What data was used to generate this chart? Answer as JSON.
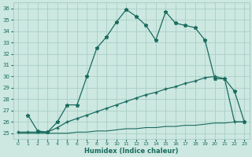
{
  "xlabel": "Humidex (Indice chaleur)",
  "bg_color": "#cce8e0",
  "grid_color": "#aacec8",
  "line_color": "#1a6b60",
  "xlim": [
    -0.5,
    23.5
  ],
  "ylim": [
    24.5,
    36.5
  ],
  "xticks": [
    0,
    1,
    2,
    3,
    4,
    5,
    6,
    7,
    8,
    9,
    10,
    11,
    12,
    13,
    14,
    15,
    16,
    17,
    18,
    19,
    20,
    21,
    22,
    23
  ],
  "yticks": [
    25,
    26,
    27,
    28,
    29,
    30,
    31,
    32,
    33,
    34,
    35,
    36
  ],
  "line1_x": [
    1,
    2,
    3,
    4,
    5,
    6,
    7,
    8,
    9,
    10,
    11,
    12,
    13,
    14,
    15,
    16,
    17,
    18,
    19,
    20,
    21,
    22,
    23
  ],
  "line1_y": [
    26.6,
    25.2,
    25.1,
    26.0,
    27.5,
    27.5,
    30.0,
    32.5,
    33.5,
    34.8,
    35.9,
    35.3,
    34.5,
    33.2,
    35.7,
    34.7,
    34.5,
    34.3,
    33.2,
    29.8,
    29.8,
    28.7,
    26.0
  ],
  "line2_x": [
    0,
    1,
    2,
    3,
    4,
    5,
    6,
    7,
    8,
    9,
    10,
    11,
    12,
    13,
    14,
    15,
    16,
    17,
    18,
    19,
    20,
    21,
    22,
    23
  ],
  "line2_y": [
    25.1,
    25.1,
    25.1,
    25.1,
    25.5,
    26.0,
    26.3,
    26.6,
    26.9,
    27.2,
    27.5,
    27.8,
    28.1,
    28.4,
    28.6,
    28.9,
    29.1,
    29.4,
    29.6,
    29.9,
    30.0,
    29.8,
    26.0,
    26.0
  ],
  "line3_x": [
    0,
    1,
    2,
    3,
    4,
    5,
    6,
    7,
    8,
    9,
    10,
    11,
    12,
    13,
    14,
    15,
    16,
    17,
    18,
    19,
    20,
    21,
    22,
    23
  ],
  "line3_y": [
    25.0,
    25.0,
    25.0,
    25.0,
    25.0,
    25.0,
    25.1,
    25.1,
    25.2,
    25.2,
    25.3,
    25.4,
    25.4,
    25.5,
    25.5,
    25.6,
    25.6,
    25.7,
    25.7,
    25.8,
    25.9,
    25.9,
    26.0,
    26.0
  ]
}
